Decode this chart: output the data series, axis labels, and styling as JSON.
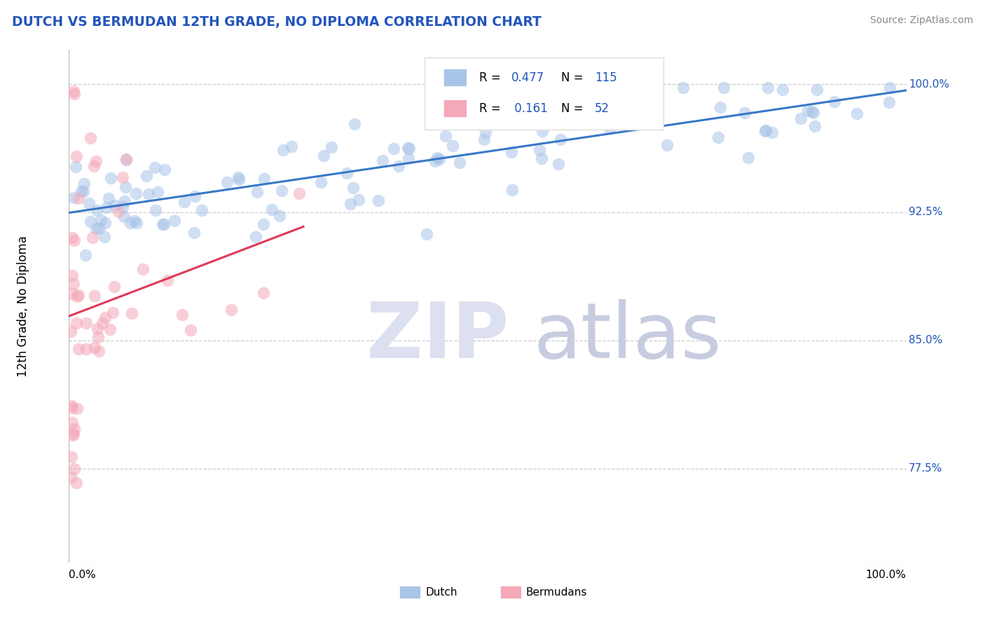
{
  "title": "DUTCH VS BERMUDAN 12TH GRADE, NO DIPLOMA CORRELATION CHART",
  "source": "Source: ZipAtlas.com",
  "ylabel": "12th Grade, No Diploma",
  "xlim": [
    0.0,
    1.0
  ],
  "ylim": [
    0.72,
    1.02
  ],
  "ytick_labels": [
    "77.5%",
    "85.0%",
    "92.5%",
    "100.0%"
  ],
  "ytick_values": [
    0.775,
    0.85,
    0.925,
    1.0
  ],
  "dutch_color": "#a8c4e8",
  "bermuda_color": "#f4a8b8",
  "dutch_line_color": "#3878c8",
  "bermuda_line_color": "#e03858",
  "title_color": "#2255bb",
  "label_color": "#2255bb",
  "source_color": "#888888",
  "grid_color": "#cccccc",
  "watermark_zip_color": "#dde0f0",
  "watermark_atlas_color": "#c8cce0"
}
